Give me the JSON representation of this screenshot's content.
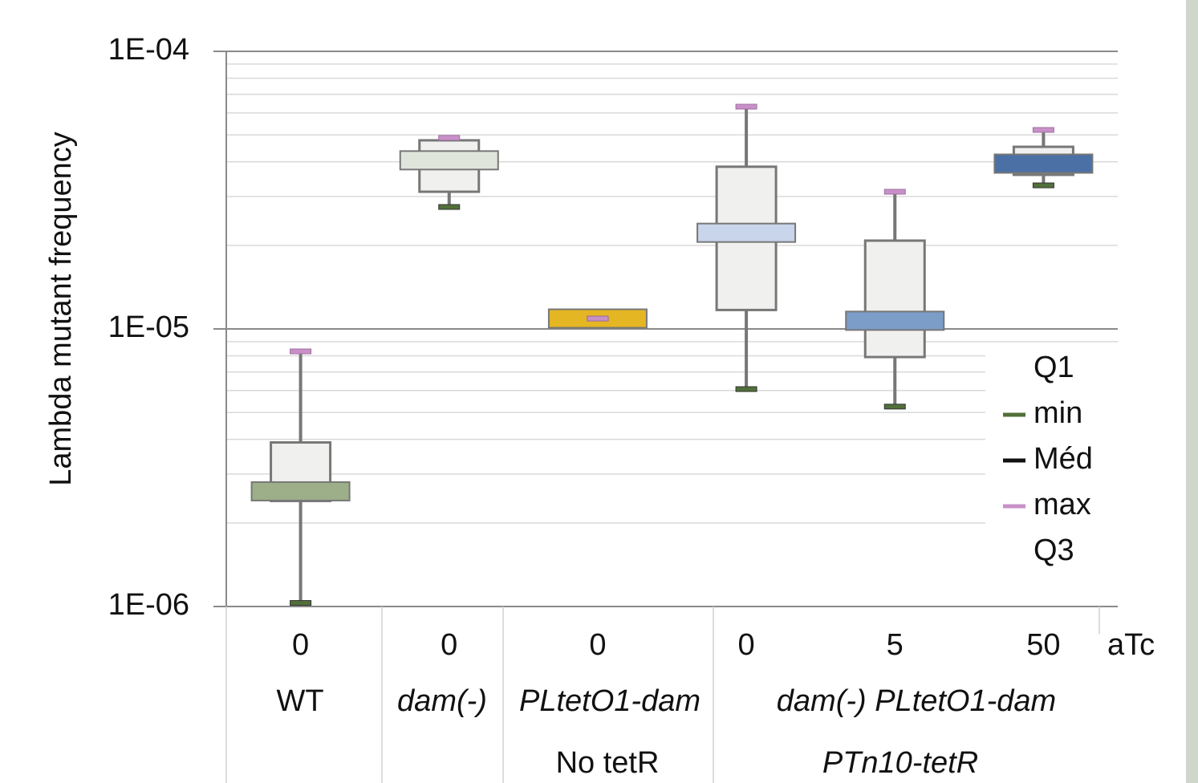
{
  "chart_data": {
    "type": "box",
    "y_label": "Lambda mutant frequency",
    "log_scale": true,
    "ylim": [
      1e-06,
      0.0001
    ],
    "yticks": [
      {
        "value": 0.0001,
        "label": "1E-04"
      },
      {
        "value": 1e-05,
        "label": "1E-05"
      },
      {
        "value": 1e-06,
        "label": "1E-06"
      }
    ],
    "grid": true,
    "x_row_label": "aTc",
    "categories": [
      "0",
      "0",
      "0",
      "0",
      "5",
      "50"
    ],
    "groups": [
      {
        "label": "WT",
        "italic": false
      },
      {
        "label": "dam(-)",
        "italic": true
      },
      {
        "label": "PLtetO1-dam",
        "italic": true
      },
      {
        "label": "No tetR",
        "italic": false
      },
      {
        "label": "dam(-) PLtetO1-dam",
        "italic": true
      },
      {
        "label": "PTn10-tetR",
        "italic": true
      }
    ],
    "series": [
      {
        "color": "#9caf89",
        "min": 1.03e-06,
        "q1": 2.4e-06,
        "median": 2.6e-06,
        "q3": 3.9e-06,
        "max": 8.3e-06
      },
      {
        "color": "#dfe5da",
        "min": 2.75e-05,
        "q1": 3.12e-05,
        "median": 4.05e-05,
        "q3": 4.78e-05,
        "max": 4.88e-05
      },
      {
        "color": "#e5b623",
        "min": 1.09e-05,
        "q1": 1.09e-05,
        "median": 1.09e-05,
        "q3": 1.09e-05,
        "max": 1.09e-05
      },
      {
        "color": "#c9d5eb",
        "min": 6.07e-06,
        "q1": 1.17e-05,
        "median": 2.22e-05,
        "q3": 3.84e-05,
        "max": 6.32e-05
      },
      {
        "color": "#7b9dc8",
        "min": 5.25e-06,
        "q1": 7.92e-06,
        "median": 1.07e-05,
        "q3": 2.08e-05,
        "max": 3.12e-05
      },
      {
        "color": "#4a70a6",
        "min": 3.29e-05,
        "q1": 3.59e-05,
        "median": 3.94e-05,
        "q3": 4.53e-05,
        "max": 5.21e-05
      }
    ],
    "legend": [
      {
        "name": "Q1"
      },
      {
        "name": "min",
        "color": "#51703a"
      },
      {
        "name": "Méd",
        "color": "#111111"
      },
      {
        "name": "max",
        "color": "#c890c8"
      },
      {
        "name": "Q3"
      }
    ]
  }
}
